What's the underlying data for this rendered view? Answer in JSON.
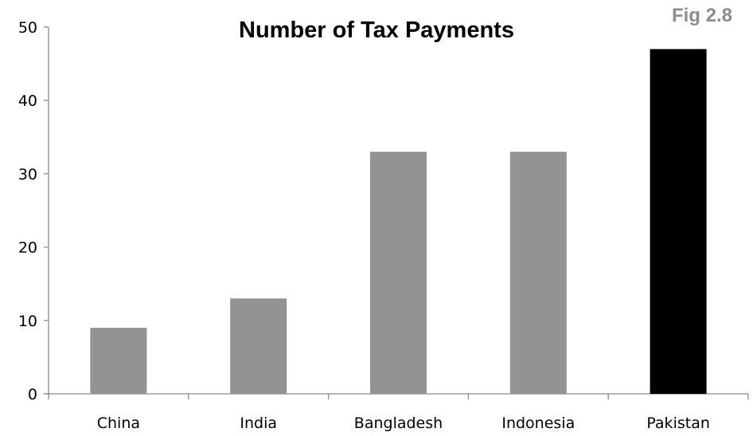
{
  "figure_label": "Fig 2.8",
  "chart_data": {
    "type": "bar",
    "title": "Number of Tax Payments",
    "xlabel": "",
    "ylabel": "",
    "categories": [
      "China",
      "India",
      "Bangladesh",
      "Indonesia",
      "Pakistan"
    ],
    "values": [
      9,
      13,
      33,
      33,
      47
    ],
    "ylim": [
      0,
      50
    ],
    "yticks": [
      0,
      10,
      20,
      30,
      40,
      50
    ],
    "grid": false,
    "legend": "none",
    "colors": {
      "default_bar": "#939393",
      "highlight_bar": "#000000",
      "axis": "#8c8c8c"
    },
    "highlight_category": "Pakistan"
  }
}
